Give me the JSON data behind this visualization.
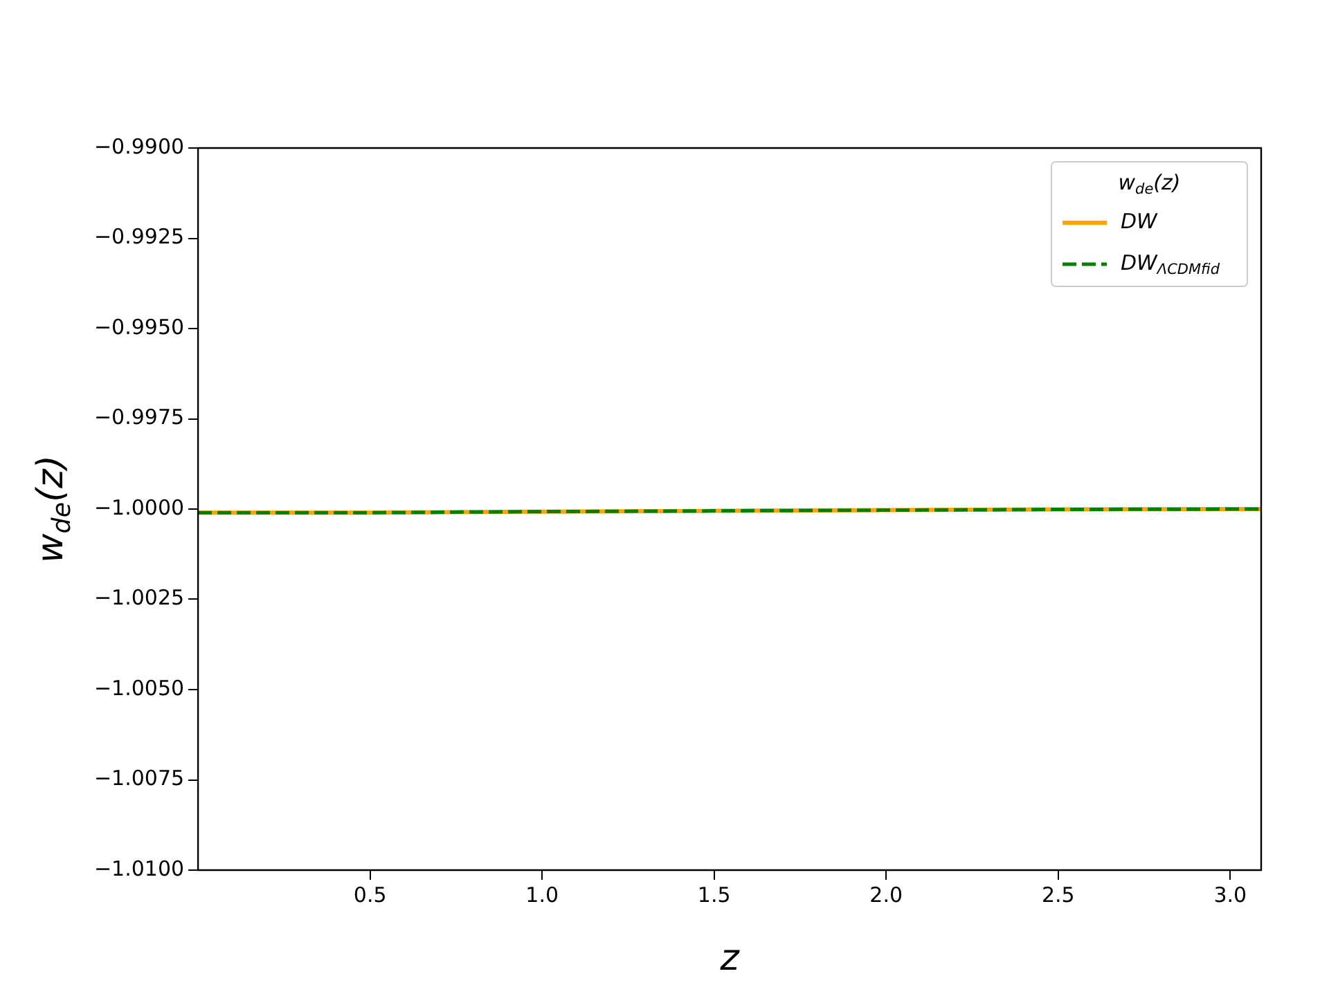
{
  "chart_data": {
    "type": "line",
    "xlabel": "z",
    "ylabel": "w$_{de}$(z)",
    "legend_title": "w$_{de}$(z)",
    "legend": "top right",
    "grid": false,
    "marker": "none",
    "x": [
      0,
      0.5,
      1,
      1.5,
      2,
      2.5,
      3.09
    ],
    "xlim": [
      0,
      3.09
    ],
    "xticks": [
      {
        "value": 0.5,
        "label": "0.5"
      },
      {
        "value": 1,
        "label": "1.0"
      },
      {
        "value": 1.5,
        "label": "1.5"
      },
      {
        "value": 2,
        "label": "2.0"
      },
      {
        "value": 2.5,
        "label": "2.5"
      },
      {
        "value": 3,
        "label": "3.0"
      }
    ],
    "ylim": [
      -1.01,
      -0.99
    ],
    "yticks": [
      {
        "value": -1.01,
        "label": "−1.0100"
      },
      {
        "value": -1.0075,
        "label": "−1.0075"
      },
      {
        "value": -1.005,
        "label": "−1.0050"
      },
      {
        "value": -1.0025,
        "label": "−1.0025"
      },
      {
        "value": -1,
        "label": "−1.0000"
      },
      {
        "value": -0.9975,
        "label": "−0.9975"
      },
      {
        "value": -0.995,
        "label": "−0.9950"
      },
      {
        "value": -0.9925,
        "label": "−0.9925"
      },
      {
        "value": -0.99,
        "label": "−0.9900"
      }
    ],
    "series": [
      {
        "name": "DW",
        "color": "#ffa500",
        "line_style": "solid",
        "values": [
          -1.0001,
          -1.0001,
          -1.00007,
          -1.00005,
          -1.00003,
          -1.00001,
          -1.0
        ]
      },
      {
        "name": "DW$_{ΛCDMfid}$",
        "color": "#008000",
        "line_style": "dashed",
        "values": [
          -1.0001,
          -1.0001,
          -1.00007,
          -1.00005,
          -1.00003,
          -1.00001,
          -1.0
        ]
      }
    ]
  }
}
